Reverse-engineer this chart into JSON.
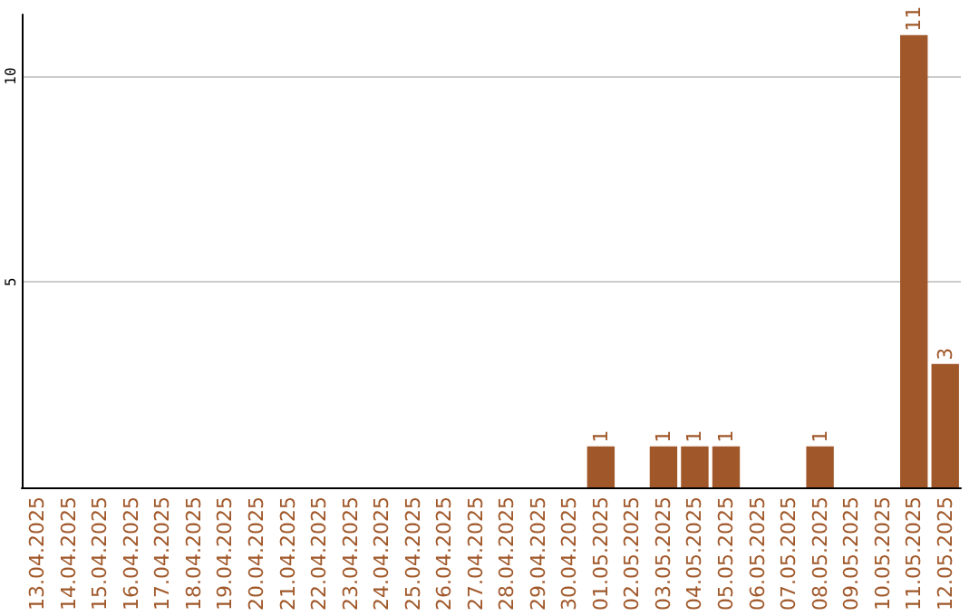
{
  "chart_data": {
    "type": "bar",
    "categories": [
      "13.04.2025",
      "14.04.2025",
      "15.04.2025",
      "16.04.2025",
      "17.04.2025",
      "18.04.2025",
      "19.04.2025",
      "20.04.2025",
      "21.04.2025",
      "22.04.2025",
      "23.04.2025",
      "24.04.2025",
      "25.04.2025",
      "26.04.2025",
      "27.04.2025",
      "28.04.2025",
      "29.04.2025",
      "30.04.2025",
      "01.05.2025",
      "02.05.2025",
      "03.05.2025",
      "04.05.2025",
      "05.05.2025",
      "06.05.2025",
      "07.05.2025",
      "08.05.2025",
      "09.05.2025",
      "10.05.2025",
      "11.05.2025",
      "12.05.2025"
    ],
    "values": [
      0,
      0,
      0,
      0,
      0,
      0,
      0,
      0,
      0,
      0,
      0,
      0,
      0,
      0,
      0,
      0,
      0,
      0,
      1,
      0,
      1,
      1,
      1,
      0,
      0,
      1,
      0,
      0,
      11,
      3
    ],
    "value_labels": [
      null,
      null,
      null,
      null,
      null,
      null,
      null,
      null,
      null,
      null,
      null,
      null,
      null,
      null,
      null,
      null,
      null,
      null,
      "1",
      null,
      "1",
      "1",
      "1",
      null,
      null,
      "1",
      null,
      null,
      "11",
      "3"
    ],
    "color": "#a0582a",
    "ylim": [
      0,
      11.5
    ],
    "yticks": [
      5,
      10
    ],
    "grid": "y"
  }
}
